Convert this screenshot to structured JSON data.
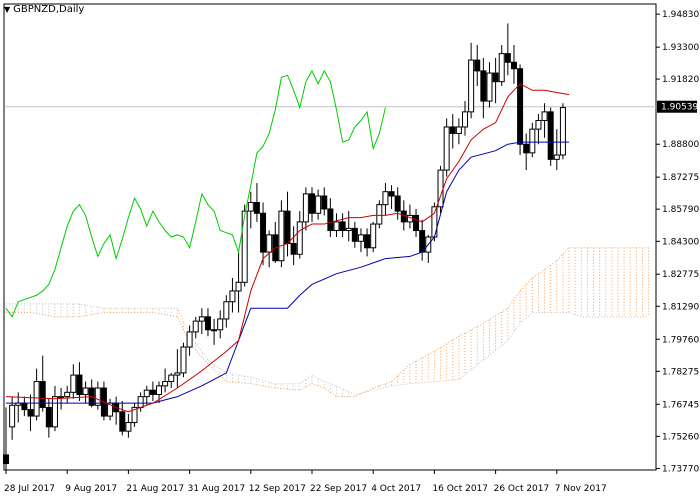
{
  "window": {
    "symbol_label": "GBPNZD,Daily",
    "menu_icon": "triangle-down-icon"
  },
  "colors": {
    "background": "#ffffff",
    "axis": "#000000",
    "candle_body_bull": "#ffffff",
    "candle_body_bear": "#000000",
    "tenkan": "#cc0000",
    "kijun": "#0000aa",
    "chikou": "#00cc00",
    "kumo_up": "#c0c0c0",
    "kumo_down": "#f4a460",
    "price_line": "#c0c0c0"
  },
  "chart_data": {
    "type": "candlestick",
    "title": "GBPNZD,Daily",
    "ylim": [
      1.737,
      1.953
    ],
    "y_ticks": [
      "1.94830",
      "1.93300",
      "1.91820",
      "1.90539",
      "1.88800",
      "1.87275",
      "1.85790",
      "1.84300",
      "1.82775",
      "1.81290",
      "1.79760",
      "1.78275",
      "1.76745",
      "1.75260",
      "1.73770"
    ],
    "y_tick_values": [
      1.9483,
      1.933,
      1.9182,
      1.90539,
      1.888,
      1.87275,
      1.8579,
      1.843,
      1.82775,
      1.8129,
      1.7976,
      1.78275,
      1.76745,
      1.7526,
      1.7377
    ],
    "current_price": "1.90539",
    "current_price_value": 1.90539,
    "x_labels": [
      "28 Jul 2017",
      "9 Aug 2017",
      "21 Aug 2017",
      "31 Aug 2017",
      "12 Sep 2017",
      "22 Sep 2017",
      "4 Oct 2017",
      "16 Oct 2017",
      "26 Oct 2017",
      "7 Nov 2017"
    ],
    "x_label_index": [
      0,
      10,
      20,
      30,
      40,
      50,
      60,
      70,
      80,
      90
    ],
    "total_slots": 106,
    "candles": [
      [
        1.744,
        1.766,
        1.736,
        1.74
      ],
      [
        1.757,
        1.771,
        1.751,
        1.767
      ],
      [
        1.767,
        1.773,
        1.759,
        1.768
      ],
      [
        1.768,
        1.771,
        1.762,
        1.765
      ],
      [
        1.765,
        1.772,
        1.755,
        1.762
      ],
      [
        1.762,
        1.784,
        1.76,
        1.778
      ],
      [
        1.778,
        1.79,
        1.764,
        1.766
      ],
      [
        1.766,
        1.77,
        1.752,
        1.757
      ],
      [
        1.757,
        1.776,
        1.755,
        1.771
      ],
      [
        1.771,
        1.775,
        1.765,
        1.771
      ],
      [
        1.771,
        1.776,
        1.768,
        1.773
      ],
      [
        1.773,
        1.786,
        1.77,
        1.781
      ],
      [
        1.781,
        1.787,
        1.769,
        1.772
      ],
      [
        1.772,
        1.778,
        1.768,
        1.775
      ],
      [
        1.775,
        1.779,
        1.766,
        1.767
      ],
      [
        1.767,
        1.778,
        1.765,
        1.775
      ],
      [
        1.775,
        1.778,
        1.76,
        1.762
      ],
      [
        1.762,
        1.77,
        1.76,
        1.768
      ],
      [
        1.768,
        1.771,
        1.758,
        1.764
      ],
      [
        1.764,
        1.769,
        1.753,
        1.755
      ],
      [
        1.755,
        1.763,
        1.752,
        1.759
      ],
      [
        1.759,
        1.768,
        1.757,
        1.766
      ],
      [
        1.766,
        1.773,
        1.764,
        1.771
      ],
      [
        1.771,
        1.776,
        1.767,
        1.774
      ],
      [
        1.774,
        1.778,
        1.769,
        1.772
      ],
      [
        1.772,
        1.778,
        1.768,
        1.776
      ],
      [
        1.776,
        1.784,
        1.773,
        1.778
      ],
      [
        1.778,
        1.782,
        1.775,
        1.781
      ],
      [
        1.781,
        1.793,
        1.775,
        1.782
      ],
      [
        1.782,
        1.796,
        1.78,
        1.794
      ],
      [
        1.794,
        1.804,
        1.79,
        1.801
      ],
      [
        1.801,
        1.808,
        1.798,
        1.806
      ],
      [
        1.806,
        1.812,
        1.8,
        1.808
      ],
      [
        1.808,
        1.812,
        1.799,
        1.802
      ],
      [
        1.802,
        1.807,
        1.795,
        1.802
      ],
      [
        1.802,
        1.811,
        1.798,
        1.807
      ],
      [
        1.807,
        1.818,
        1.803,
        1.815
      ],
      [
        1.815,
        1.826,
        1.81,
        1.82
      ],
      [
        1.82,
        1.838,
        1.81,
        1.824
      ],
      [
        1.824,
        1.86,
        1.822,
        1.857
      ],
      [
        1.857,
        1.866,
        1.849,
        1.861
      ],
      [
        1.861,
        1.87,
        1.852,
        1.856
      ],
      [
        1.856,
        1.861,
        1.832,
        1.838
      ],
      [
        1.838,
        1.848,
        1.831,
        1.846
      ],
      [
        1.846,
        1.852,
        1.833,
        1.834
      ],
      [
        1.834,
        1.862,
        1.831,
        1.857
      ],
      [
        1.857,
        1.866,
        1.836,
        1.842
      ],
      [
        1.842,
        1.85,
        1.832,
        1.837
      ],
      [
        1.837,
        1.857,
        1.835,
        1.852
      ],
      [
        1.852,
        1.868,
        1.848,
        1.865
      ],
      [
        1.865,
        1.868,
        1.852,
        1.856
      ],
      [
        1.856,
        1.867,
        1.853,
        1.864
      ],
      [
        1.864,
        1.868,
        1.855,
        1.858
      ],
      [
        1.858,
        1.863,
        1.845,
        1.848
      ],
      [
        1.848,
        1.856,
        1.845,
        1.852
      ],
      [
        1.852,
        1.856,
        1.845,
        1.848
      ],
      [
        1.848,
        1.857,
        1.843,
        1.849
      ],
      [
        1.849,
        1.852,
        1.84,
        1.843
      ],
      [
        1.843,
        1.849,
        1.838,
        1.846
      ],
      [
        1.846,
        1.849,
        1.836,
        1.84
      ],
      [
        1.84,
        1.852,
        1.838,
        1.851
      ],
      [
        1.851,
        1.862,
        1.849,
        1.86
      ],
      [
        1.86,
        1.87,
        1.855,
        1.866
      ],
      [
        1.866,
        1.869,
        1.858,
        1.864
      ],
      [
        1.864,
        1.868,
        1.853,
        1.857
      ],
      [
        1.857,
        1.862,
        1.848,
        1.852
      ],
      [
        1.852,
        1.86,
        1.849,
        1.855
      ],
      [
        1.855,
        1.858,
        1.845,
        1.848
      ],
      [
        1.848,
        1.853,
        1.834,
        1.838
      ],
      [
        1.838,
        1.846,
        1.833,
        1.845
      ],
      [
        1.845,
        1.861,
        1.843,
        1.859
      ],
      [
        1.859,
        1.878,
        1.856,
        1.876
      ],
      [
        1.876,
        1.9,
        1.873,
        1.896
      ],
      [
        1.896,
        1.902,
        1.886,
        1.893
      ],
      [
        1.893,
        1.9,
        1.888,
        1.896
      ],
      [
        1.896,
        1.908,
        1.892,
        1.903
      ],
      [
        1.903,
        1.935,
        1.9,
        1.927
      ],
      [
        1.927,
        1.934,
        1.915,
        1.922
      ],
      [
        1.922,
        1.928,
        1.9,
        1.908
      ],
      [
        1.908,
        1.926,
        1.905,
        1.921
      ],
      [
        1.921,
        1.928,
        1.907,
        1.917
      ],
      [
        1.917,
        1.934,
        1.915,
        1.93
      ],
      [
        1.93,
        1.944,
        1.92,
        1.926
      ],
      [
        1.926,
        1.934,
        1.916,
        1.923
      ],
      [
        1.923,
        1.925,
        1.883,
        1.888
      ],
      [
        1.888,
        1.893,
        1.876,
        1.884
      ],
      [
        1.884,
        1.898,
        1.882,
        1.895
      ],
      [
        1.895,
        1.902,
        1.888,
        1.899
      ],
      [
        1.899,
        1.907,
        1.891,
        1.903
      ],
      [
        1.903,
        1.905,
        1.878,
        1.881
      ],
      [
        1.881,
        1.895,
        1.876,
        1.883
      ],
      [
        1.883,
        1.907,
        1.881,
        1.905
      ]
    ],
    "tenkan_sen": [
      [
        0,
        1.771
      ],
      [
        8,
        1.77
      ],
      [
        14,
        1.771
      ],
      [
        18,
        1.766
      ],
      [
        20,
        1.764
      ],
      [
        24,
        1.768
      ],
      [
        28,
        1.775
      ],
      [
        32,
        1.783
      ],
      [
        36,
        1.792
      ],
      [
        38,
        1.797
      ],
      [
        40,
        1.82
      ],
      [
        42,
        1.835
      ],
      [
        44,
        1.84
      ],
      [
        46,
        1.842
      ],
      [
        48,
        1.848
      ],
      [
        50,
        1.851
      ],
      [
        52,
        1.851
      ],
      [
        56,
        1.854
      ],
      [
        58,
        1.854
      ],
      [
        60,
        1.855
      ],
      [
        62,
        1.855
      ],
      [
        64,
        1.856
      ],
      [
        66,
        1.854
      ],
      [
        68,
        1.852
      ],
      [
        70,
        1.856
      ],
      [
        72,
        1.872
      ],
      [
        74,
        1.88
      ],
      [
        76,
        1.89
      ],
      [
        78,
        1.895
      ],
      [
        80,
        1.898
      ],
      [
        82,
        1.91
      ],
      [
        84,
        1.916
      ],
      [
        86,
        1.913
      ],
      [
        88,
        1.913
      ],
      [
        90,
        1.912
      ],
      [
        92,
        1.911
      ]
    ],
    "kijun_sen": [
      [
        0,
        1.768
      ],
      [
        10,
        1.768
      ],
      [
        18,
        1.768
      ],
      [
        24,
        1.768
      ],
      [
        28,
        1.771
      ],
      [
        32,
        1.776
      ],
      [
        36,
        1.782
      ],
      [
        40,
        1.812
      ],
      [
        46,
        1.812
      ],
      [
        48,
        1.818
      ],
      [
        50,
        1.823
      ],
      [
        54,
        1.828
      ],
      [
        58,
        1.831
      ],
      [
        62,
        1.835
      ],
      [
        66,
        1.836
      ],
      [
        68,
        1.838
      ],
      [
        70,
        1.845
      ],
      [
        72,
        1.866
      ],
      [
        74,
        1.876
      ],
      [
        76,
        1.882
      ],
      [
        80,
        1.885
      ],
      [
        82,
        1.888
      ],
      [
        84,
        1.889
      ],
      [
        88,
        1.889
      ],
      [
        92,
        1.889
      ]
    ],
    "chikou_span": [
      [
        0,
        1.812
      ],
      [
        1,
        1.808
      ],
      [
        2,
        1.815
      ],
      [
        3,
        1.816
      ],
      [
        5,
        1.818
      ],
      [
        6,
        1.82
      ],
      [
        7,
        1.823
      ],
      [
        8,
        1.83
      ],
      [
        9,
        1.84
      ],
      [
        10,
        1.85
      ],
      [
        11,
        1.857
      ],
      [
        12,
        1.86
      ],
      [
        13,
        1.855
      ],
      [
        14,
        1.845
      ],
      [
        15,
        1.836
      ],
      [
        16,
        1.842
      ],
      [
        17,
        1.846
      ],
      [
        18,
        1.835
      ],
      [
        19,
        1.844
      ],
      [
        20,
        1.854
      ],
      [
        21,
        1.863
      ],
      [
        22,
        1.858
      ],
      [
        23,
        1.85
      ],
      [
        24,
        1.857
      ],
      [
        25,
        1.852
      ],
      [
        26,
        1.848
      ],
      [
        27,
        1.845
      ],
      [
        28,
        1.846
      ],
      [
        29,
        1.845
      ],
      [
        30,
        1.84
      ],
      [
        31,
        1.852
      ],
      [
        32,
        1.865
      ],
      [
        33,
        1.86
      ],
      [
        34,
        1.857
      ],
      [
        35,
        1.848
      ],
      [
        36,
        1.847
      ],
      [
        37,
        1.846
      ],
      [
        38,
        1.838
      ],
      [
        39,
        1.855
      ],
      [
        40,
        1.869
      ],
      [
        41,
        1.884
      ],
      [
        42,
        1.887
      ],
      [
        43,
        1.893
      ],
      [
        44,
        1.904
      ],
      [
        45,
        1.919
      ],
      [
        46,
        1.92
      ],
      [
        47,
        1.913
      ],
      [
        48,
        1.905
      ],
      [
        49,
        1.917
      ],
      [
        50,
        1.922
      ],
      [
        51,
        1.916
      ],
      [
        52,
        1.922
      ],
      [
        53,
        1.917
      ],
      [
        54,
        1.904
      ],
      [
        55,
        1.889
      ],
      [
        56,
        1.89
      ],
      [
        57,
        1.896
      ],
      [
        58,
        1.899
      ],
      [
        59,
        1.903
      ],
      [
        60,
        1.886
      ],
      [
        61,
        1.893
      ],
      [
        62,
        1.905
      ]
    ],
    "senkou_a": [
      [
        0,
        1.81
      ],
      [
        4,
        1.81
      ],
      [
        8,
        1.808
      ],
      [
        12,
        1.808
      ],
      [
        16,
        1.81
      ],
      [
        20,
        1.81
      ],
      [
        24,
        1.81
      ],
      [
        28,
        1.808
      ],
      [
        30,
        1.796
      ],
      [
        33,
        1.786
      ],
      [
        36,
        1.778
      ],
      [
        40,
        1.777
      ],
      [
        44,
        1.775
      ],
      [
        48,
        1.774
      ],
      [
        50,
        1.777
      ],
      [
        52,
        1.775
      ],
      [
        54,
        1.771
      ],
      [
        57,
        1.771
      ],
      [
        60,
        1.775
      ],
      [
        63,
        1.778
      ],
      [
        66,
        1.786
      ],
      [
        70,
        1.792
      ],
      [
        74,
        1.799
      ],
      [
        78,
        1.805
      ],
      [
        82,
        1.812
      ],
      [
        84,
        1.82
      ],
      [
        86,
        1.826
      ],
      [
        88,
        1.83
      ],
      [
        90,
        1.834
      ],
      [
        92,
        1.84
      ],
      [
        94,
        1.84
      ],
      [
        97,
        1.84
      ],
      [
        100,
        1.84
      ],
      [
        105,
        1.84
      ]
    ],
    "senkou_b": [
      [
        0,
        1.814
      ],
      [
        4,
        1.814
      ],
      [
        8,
        1.814
      ],
      [
        12,
        1.814
      ],
      [
        16,
        1.812
      ],
      [
        20,
        1.812
      ],
      [
        24,
        1.812
      ],
      [
        28,
        1.812
      ],
      [
        30,
        1.8
      ],
      [
        33,
        1.788
      ],
      [
        36,
        1.782
      ],
      [
        40,
        1.78
      ],
      [
        44,
        1.777
      ],
      [
        48,
        1.777
      ],
      [
        50,
        1.781
      ],
      [
        52,
        1.778
      ],
      [
        54,
        1.776
      ],
      [
        57,
        1.772
      ],
      [
        60,
        1.774
      ],
      [
        63,
        1.776
      ],
      [
        66,
        1.777
      ],
      [
        70,
        1.778
      ],
      [
        74,
        1.779
      ],
      [
        78,
        1.788
      ],
      [
        82,
        1.797
      ],
      [
        84,
        1.805
      ],
      [
        86,
        1.81
      ],
      [
        88,
        1.81
      ],
      [
        90,
        1.81
      ],
      [
        92,
        1.81
      ],
      [
        94,
        1.808
      ],
      [
        97,
        1.808
      ],
      [
        100,
        1.808
      ],
      [
        105,
        1.808
      ]
    ]
  }
}
